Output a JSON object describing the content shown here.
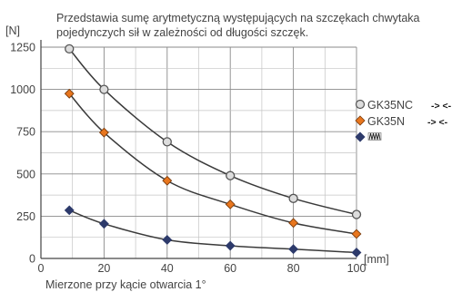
{
  "chart_data": {
    "type": "line",
    "description": [
      "Przedstawia sumę arytmetyczną występujących na szczękach chwytaka",
      "pojedynczych sił w zależności od długości szczęk."
    ],
    "ylabel": "[N]",
    "xlabel": "[mm]",
    "footnote": "Mierzone przy kącie otwarcia 1°",
    "xlim": [
      0,
      100
    ],
    "ylim": [
      0,
      1250
    ],
    "xticks": [
      0,
      20,
      40,
      60,
      80,
      100
    ],
    "yticks": [
      0,
      250,
      500,
      750,
      1000,
      1250
    ],
    "grid": true,
    "legend_position": "right",
    "series": [
      {
        "name": "GK35NC",
        "arrows": "-> <-",
        "marker": "circle",
        "color": "#dddddd",
        "stroke": "#555555",
        "x": [
          9,
          20,
          40,
          60,
          80,
          100
        ],
        "values": [
          1240,
          1000,
          690,
          490,
          355,
          260
        ]
      },
      {
        "name": "GK35N",
        "arrows": "-> <-",
        "marker": "diamond",
        "color": "#e8761e",
        "stroke": "#7a3a0a",
        "x": [
          9,
          20,
          40,
          60,
          80,
          100
        ],
        "values": [
          975,
          745,
          460,
          320,
          210,
          145
        ]
      },
      {
        "name": "",
        "symbol": "spring",
        "marker": "diamond",
        "color": "#2d3a6b",
        "stroke": "#2d3a6b",
        "x": [
          9,
          20,
          40,
          60,
          80,
          100
        ],
        "values": [
          285,
          205,
          110,
          75,
          55,
          35
        ]
      }
    ]
  }
}
